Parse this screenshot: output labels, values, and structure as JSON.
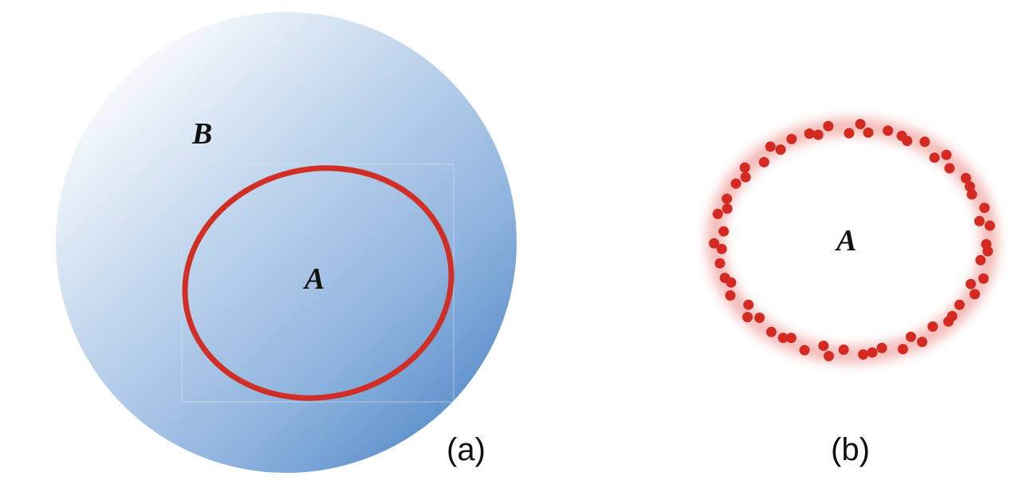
{
  "panel_a": {
    "caption": "(a)",
    "outer_set_label": "B",
    "inner_set_label": "A",
    "colors": {
      "gradient_light": "#ffffff",
      "gradient_dark": "#4f86c6",
      "boundary": "#d12f26"
    }
  },
  "panel_b": {
    "caption": "(b)",
    "set_label": "A",
    "colors": {
      "dot": "#d42a22",
      "glow": "#f3b3b0"
    }
  }
}
